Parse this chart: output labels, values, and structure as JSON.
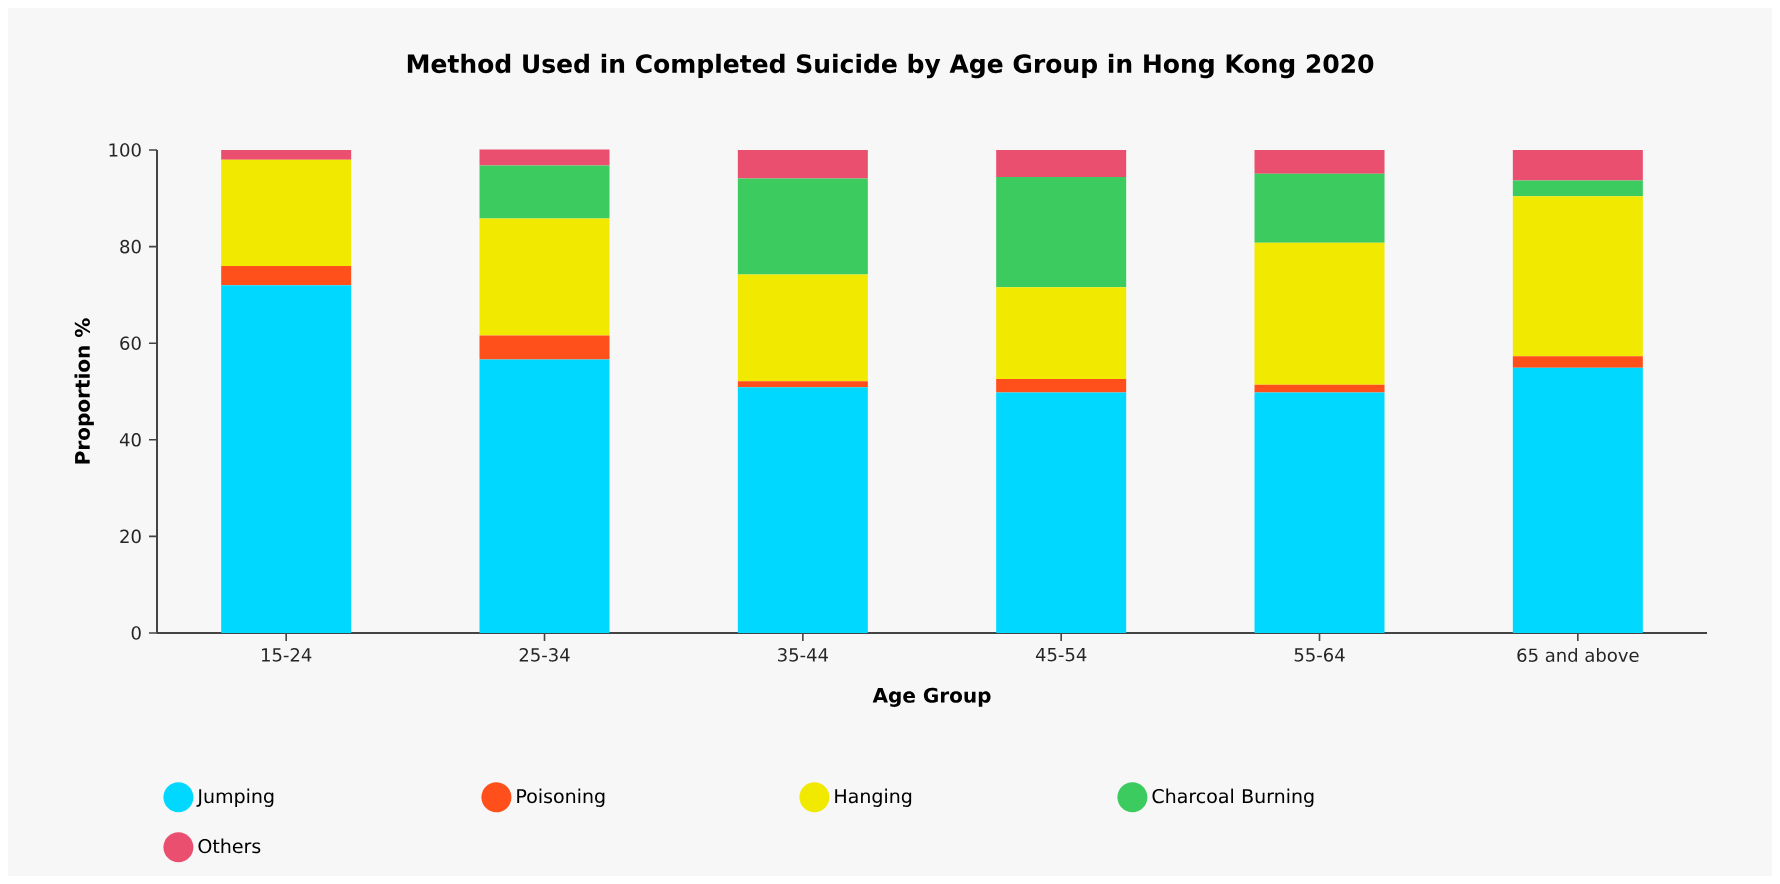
{
  "chart_data": {
    "type": "bar",
    "stacked": true,
    "title": "Method Used in Completed Suicide by Age Group in Hong Kong 2020",
    "xlabel": "Age Group",
    "ylabel": "Proportion %",
    "categories": [
      "15-24",
      "25-34",
      "35-44",
      "45-54",
      "55-64",
      "65 and above"
    ],
    "series": [
      {
        "name": "Jumping",
        "color": "#00d8ff",
        "values": [
          72,
          56.6,
          50.9,
          49.8,
          49.8,
          54.9
        ]
      },
      {
        "name": "Poisoning",
        "color": "#ff4f1a",
        "values": [
          4,
          5,
          1.2,
          2.8,
          1.6,
          2.4
        ]
      },
      {
        "name": "Hanging",
        "color": "#f2e900",
        "values": [
          22,
          24.2,
          22.1,
          19,
          29.4,
          33.1
        ]
      },
      {
        "name": "Charcoal Burning",
        "color": "#3ccb5e",
        "values": [
          0,
          11,
          19.9,
          22.8,
          14.3,
          3.3
        ]
      },
      {
        "name": "Others",
        "color": "#ea4f70",
        "values": [
          2,
          3.3,
          5.9,
          5.6,
          4.9,
          6.3
        ]
      }
    ],
    "ylim": [
      0,
      100
    ],
    "yticks": [
      0,
      20,
      40,
      60,
      80,
      100
    ],
    "legend": "bottom"
  }
}
